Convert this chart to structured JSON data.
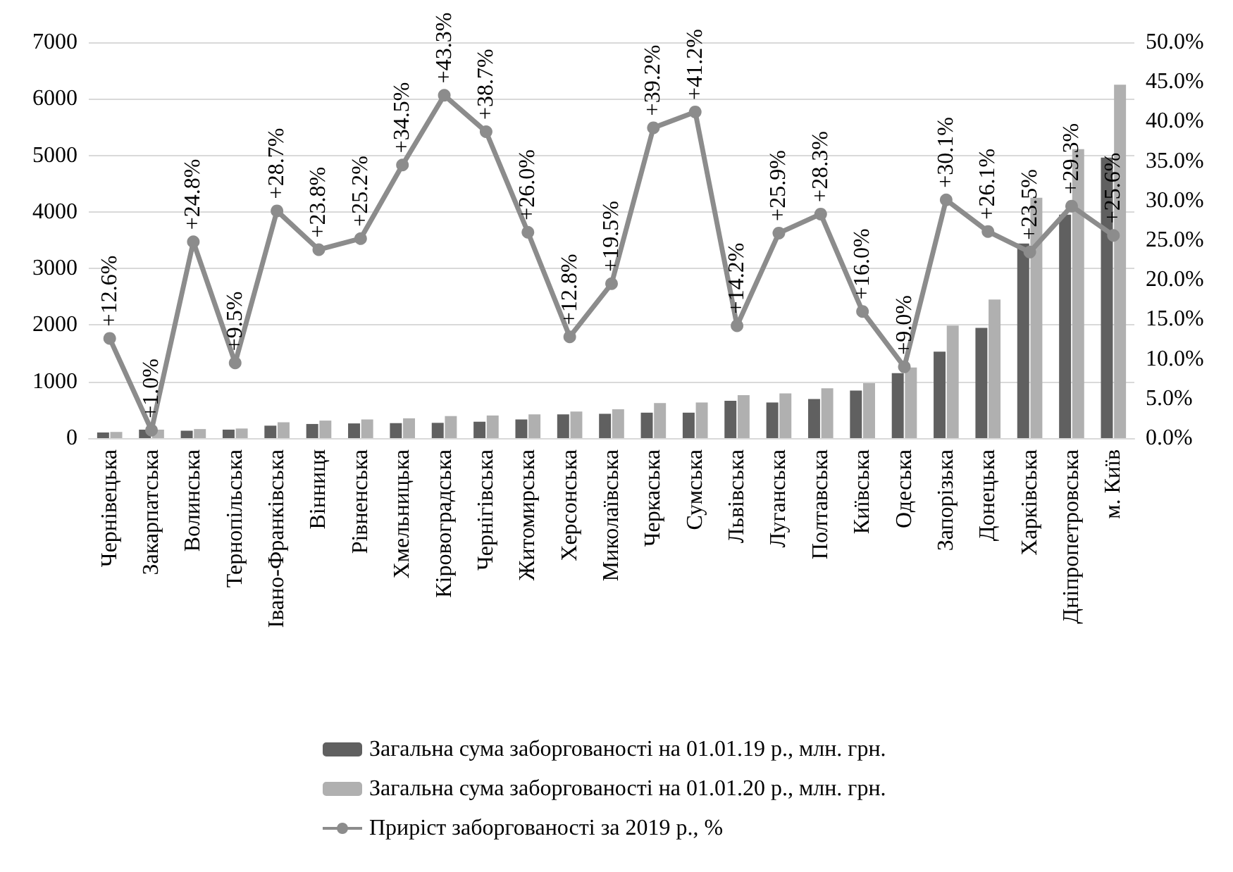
{
  "chart_data": {
    "type": "bar",
    "categories": [
      "Чернівецька",
      "Закарпатська",
      "Волинська",
      "Тернопільська",
      "Івано-Франківська",
      "Вінниця",
      "Рівненська",
      "Хмельницька",
      "Кіровоградська",
      "Чернігівська",
      "Житомирська",
      "Херсонська",
      "Миколаївська",
      "Черкаська",
      "Сумська",
      "Львівська",
      "Луганська",
      "Полтавська",
      "Київська",
      "Одеська",
      "Запорізька",
      "Донецька",
      "Харківська",
      "Дніпропетровська",
      "м. Київ"
    ],
    "series": [
      {
        "name": "Загальна сума заборгованості на 01.01.19 р., млн. грн.",
        "color": "#606060",
        "values": [
          100,
          150,
          130,
          150,
          220,
          250,
          260,
          265,
          270,
          290,
          330,
          420,
          430,
          450,
          450,
          660,
          630,
          690,
          840,
          1150,
          1530,
          1950,
          3440,
          3950,
          4960
        ]
      },
      {
        "name": "Загальна сума заборгованості на 01.01.20 р., млн. грн.",
        "color": "#b0b0b0",
        "values": [
          110,
          150,
          160,
          170,
          280,
          310,
          330,
          350,
          390,
          400,
          420,
          470,
          510,
          620,
          630,
          760,
          790,
          880,
          970,
          1250,
          1990,
          2450,
          4250,
          5110,
          6250
        ]
      },
      {
        "name": "Приріст заборгованості за 2019 р., %",
        "type": "line",
        "axis": "y2",
        "color": "#8c8c8c",
        "marker": "circle",
        "values": [
          12.6,
          1.0,
          24.8,
          9.5,
          28.7,
          23.8,
          25.2,
          34.5,
          43.3,
          38.7,
          26.0,
          12.8,
          19.5,
          39.2,
          41.2,
          14.2,
          25.9,
          28.3,
          16.0,
          9.0,
          30.1,
          26.1,
          23.5,
          29.3,
          25.6
        ],
        "value_labels": [
          "+12.6%",
          "+1.0%",
          "+24.8%",
          "+9.5%",
          "+28.7%",
          "+23.8%",
          "+25.2%",
          "+34.5%",
          "+43.3%",
          "+38.7%",
          "+26.0%",
          "+12.8%",
          "+19.5%",
          "+39.2%",
          "+41.2%",
          "+14.2%",
          "+25.9%",
          "+28.3%",
          "+16.0%",
          "+9.0%",
          "+30.1%",
          "+26.1%",
          "+23.5%",
          "+29.3%",
          "+25.6%"
        ]
      }
    ],
    "ylim": [
      0,
      7000
    ],
    "yticks": [
      0,
      1000,
      2000,
      3000,
      4000,
      5000,
      6000,
      7000
    ],
    "y2lim": [
      0,
      50
    ],
    "y2ticks": [
      {
        "value": 0,
        "label": "0.0%"
      },
      {
        "value": 5,
        "label": "5.0%"
      },
      {
        "value": 10,
        "label": "10.0%"
      },
      {
        "value": 15,
        "label": "15.0%"
      },
      {
        "value": 20,
        "label": "20.0%"
      },
      {
        "value": 25,
        "label": "25.0%"
      },
      {
        "value": 30,
        "label": "30.0%"
      },
      {
        "value": 35,
        "label": "35.0%"
      },
      {
        "value": 40,
        "label": "40.0%"
      },
      {
        "value": 45,
        "label": "45.0%"
      },
      {
        "value": 50,
        "label": "50.0%"
      }
    ],
    "grid": "y",
    "legend": "bottom"
  }
}
